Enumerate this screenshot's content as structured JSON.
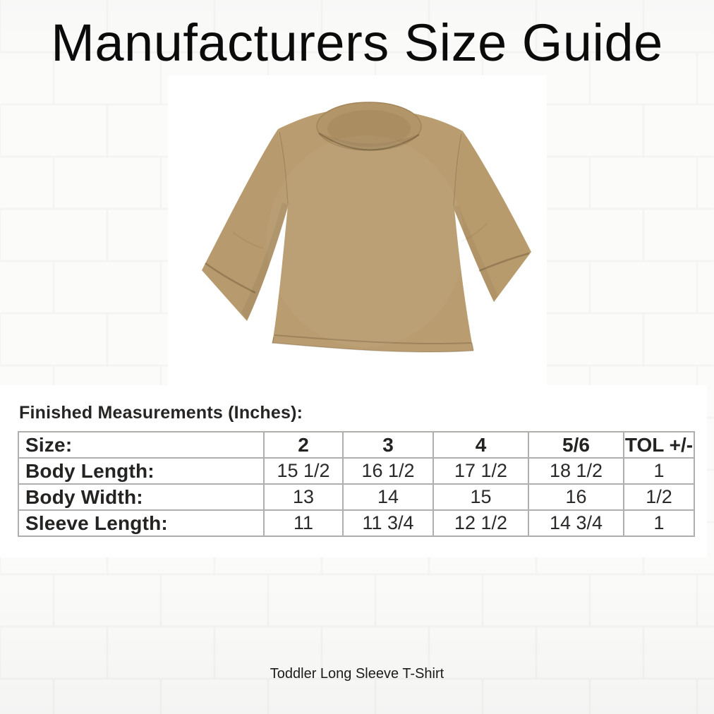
{
  "title": "Manufacturers Size Guide",
  "caption": "Toddler Long Sleeve T-Shirt",
  "product_image": {
    "description": "tan toddler long sleeve t-shirt on white background",
    "shirt_color": "#b99c6f"
  },
  "measurements": {
    "heading": "Finished Measurements (Inches):",
    "table": {
      "columns": [
        "Size:",
        "2",
        "3",
        "4",
        "5/6",
        "TOL +/-"
      ],
      "rows": [
        {
          "label": "Body Length:",
          "values": [
            "15 1/2",
            "16 1/2",
            "17 1/2",
            "18 1/2",
            "1"
          ]
        },
        {
          "label": "Body Width:",
          "values": [
            "13",
            "14",
            "15",
            "16",
            "1/2"
          ]
        },
        {
          "label": "Sleeve Length:",
          "values": [
            "11",
            "11 3/4",
            "12 1/2",
            "14 3/4",
            "1"
          ]
        }
      ]
    }
  },
  "colors": {
    "background": "#fbfbfa",
    "brick_mortar": "#e9e8e6",
    "panel": "#ffffff",
    "table_border": "#b1afad",
    "text": "#242322",
    "shirt_tan": "#b99c6f",
    "shirt_shade": "#a98c60"
  }
}
